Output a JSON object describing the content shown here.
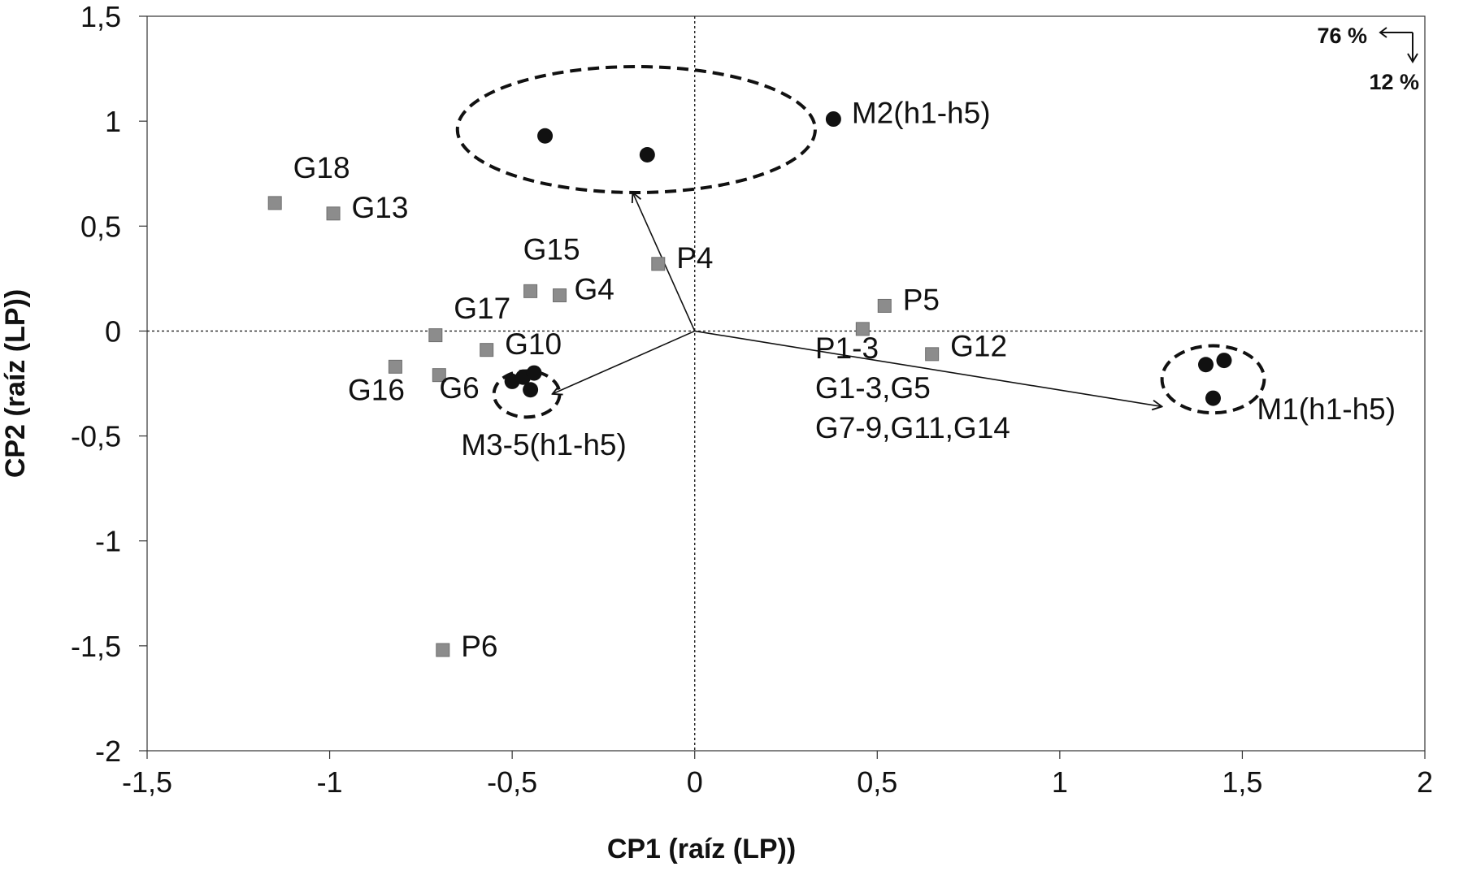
{
  "chart_data": {
    "type": "scatter",
    "xlabel": "CP1 (raíz (LP))",
    "ylabel": "CP2 (raíz (LP))",
    "xlim": [
      -1.5,
      2
    ],
    "ylim": [
      -2,
      1.5
    ],
    "x_ticks": [
      -1.5,
      -1,
      -0.5,
      0,
      0.5,
      1,
      1.5,
      2
    ],
    "y_ticks": [
      -2,
      -1.5,
      -1,
      -0.5,
      0,
      0.5,
      1,
      1.5
    ],
    "x_tick_labels": [
      "-1,5",
      "-1",
      "-0,5",
      "0",
      "0,5",
      "1",
      "1,5",
      "2"
    ],
    "y_tick_labels": [
      "-2",
      "-1,5",
      "-1",
      "-0,5",
      "0",
      "0,5",
      "1",
      "1,5"
    ],
    "grid": false,
    "reference_lines": {
      "x": 0,
      "y": 0,
      "style": "dotted"
    },
    "variance_explained": {
      "cp1": "76 %",
      "cp2": "12 %"
    },
    "series": [
      {
        "marker": "square",
        "color": "#8c8c8c",
        "points": [
          {
            "x": -1.15,
            "y": 0.61
          },
          {
            "x": -0.99,
            "y": 0.56
          },
          {
            "x": -0.45,
            "y": 0.19
          },
          {
            "x": -0.37,
            "y": 0.17
          },
          {
            "x": -0.71,
            "y": -0.02
          },
          {
            "x": -0.57,
            "y": -0.09
          },
          {
            "x": -0.82,
            "y": -0.17
          },
          {
            "x": -0.7,
            "y": -0.21
          },
          {
            "x": -0.1,
            "y": 0.32
          },
          {
            "x": 0.52,
            "y": 0.12
          },
          {
            "x": 0.46,
            "y": 0.01
          },
          {
            "x": 0.65,
            "y": -0.11
          },
          {
            "x": -0.69,
            "y": -1.52
          }
        ]
      },
      {
        "marker": "circle",
        "color": "#111111",
        "points": [
          {
            "x": -0.41,
            "y": 0.93
          },
          {
            "x": -0.13,
            "y": 0.84
          },
          {
            "x": 0.38,
            "y": 1.01
          },
          {
            "x": 1.4,
            "y": -0.16
          },
          {
            "x": 1.45,
            "y": -0.14
          },
          {
            "x": 1.42,
            "y": -0.32
          },
          {
            "x": -0.5,
            "y": -0.24
          },
          {
            "x": -0.47,
            "y": -0.22
          },
          {
            "x": -0.44,
            "y": -0.2
          },
          {
            "x": -0.45,
            "y": -0.28
          }
        ]
      }
    ],
    "annotations": [
      {
        "text": "G18",
        "x": -1.1,
        "y": 0.73
      },
      {
        "text": "G13",
        "x": -0.94,
        "y": 0.54
      },
      {
        "text": "G15",
        "x": -0.47,
        "y": 0.34
      },
      {
        "text": "G4",
        "x": -0.33,
        "y": 0.15
      },
      {
        "text": "G17",
        "x": -0.66,
        "y": 0.06
      },
      {
        "text": "G10",
        "x": -0.52,
        "y": -0.11
      },
      {
        "text": "G16",
        "x": -0.95,
        "y": -0.33
      },
      {
        "text": "G6",
        "x": -0.7,
        "y": -0.32
      },
      {
        "text": "P4",
        "x": -0.05,
        "y": 0.3
      },
      {
        "text": "P5",
        "x": 0.57,
        "y": 0.1
      },
      {
        "text": "G12",
        "x": 0.7,
        "y": -0.12
      },
      {
        "text": "P1-3",
        "x": 0.33,
        "y": -0.13
      },
      {
        "text": "G1-3,G5",
        "x": 0.33,
        "y": -0.32
      },
      {
        "text": "G7-9,G11,G14",
        "x": 0.33,
        "y": -0.51
      },
      {
        "text": "M2(h1-h5)",
        "x": 0.43,
        "y": 0.99
      },
      {
        "text": "M1(h1-h5)",
        "x": 1.54,
        "y": -0.42
      },
      {
        "text": "M3-5(h1-h5)",
        "x": -0.64,
        "y": -0.59
      },
      {
        "text": "P6",
        "x": -0.64,
        "y": -1.55
      }
    ],
    "clusters": [
      {
        "cx": -0.16,
        "cy": 0.96,
        "rx": 0.49,
        "ry": 0.3
      },
      {
        "cx": 1.42,
        "cy": -0.23,
        "rx": 0.14,
        "ry": 0.16
      },
      {
        "cx": -0.46,
        "cy": -0.3,
        "rx": 0.09,
        "ry": 0.11
      }
    ],
    "vectors": [
      {
        "x": -0.17,
        "y": 0.66
      },
      {
        "x": 1.28,
        "y": -0.36
      },
      {
        "x": -0.39,
        "y": -0.3
      }
    ]
  }
}
